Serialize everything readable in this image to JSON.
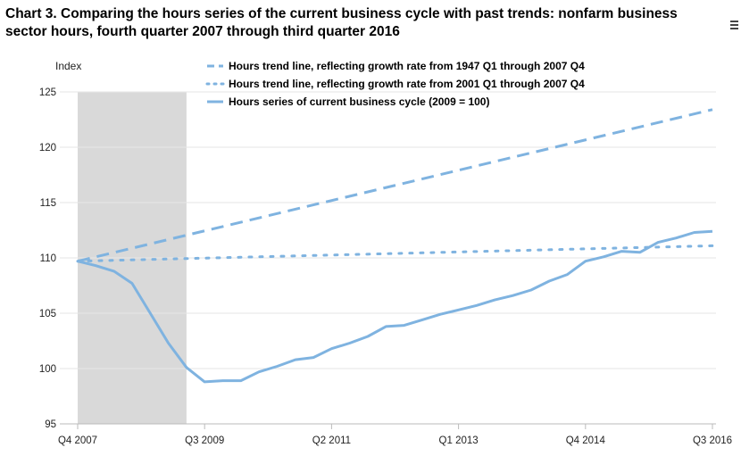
{
  "chart_data": {
    "type": "line",
    "title": "Chart 3. Comparing the hours series of the current business cycle with past trends: nonfarm business sector hours, fourth quarter 2007 through third quarter 2016",
    "ylabel": "Index",
    "ylim": [
      95,
      125
    ],
    "yticks": [
      95,
      100,
      105,
      110,
      115,
      120,
      125
    ],
    "xtick_labels": [
      {
        "label": "Q4 2007",
        "index": 0
      },
      {
        "label": "Q3 2009",
        "index": 7
      },
      {
        "label": "Q2 2011",
        "index": 14
      },
      {
        "label": "Q1 2013",
        "index": 21
      },
      {
        "label": "Q4 2014",
        "index": 28
      },
      {
        "label": "Q3 2016",
        "index": 35
      }
    ],
    "recession_shading": {
      "from_index": 0,
      "to_index": 6
    },
    "legend_position": "top-center",
    "series": [
      {
        "name": "Hours trend line, reflecting growth rate from 1947 Q1 through 2007 Q4",
        "style": "dashed",
        "color": "#7fb3e0",
        "start": 109.7,
        "end": 123.4
      },
      {
        "name": "Hours trend line, reflecting growth rate from 2001 Q1 through 2007 Q4",
        "style": "dotted",
        "color": "#7fb3e0",
        "start": 109.7,
        "end": 111.1
      },
      {
        "name": "Hours series of current business cycle (2009 = 100)",
        "style": "solid",
        "color": "#7fb3e0",
        "values": [
          109.7,
          109.3,
          108.8,
          107.7,
          105.0,
          102.3,
          100.1,
          98.8,
          98.9,
          98.9,
          99.7,
          100.2,
          100.8,
          101.0,
          101.8,
          102.3,
          102.9,
          103.8,
          103.9,
          104.4,
          104.9,
          105.3,
          105.7,
          106.2,
          106.6,
          107.1,
          107.9,
          108.5,
          109.7,
          110.1,
          110.6,
          110.5,
          111.4,
          111.8,
          112.3,
          112.4
        ]
      }
    ]
  }
}
